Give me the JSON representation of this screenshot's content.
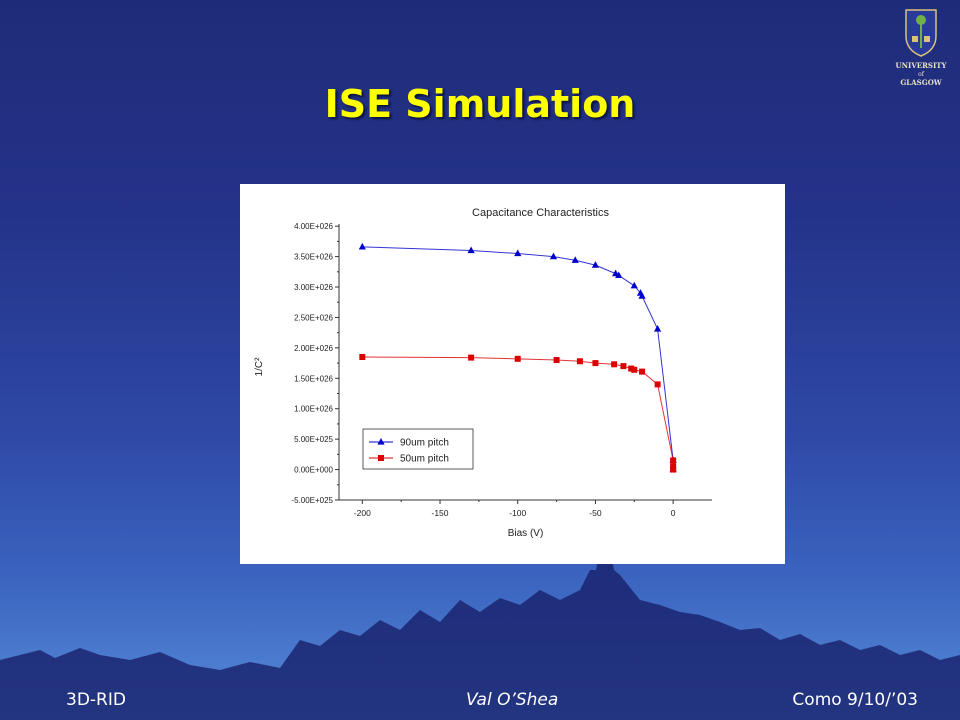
{
  "slide": {
    "title": "ISE Simulation",
    "footer_left": "3D-RID",
    "footer_center": "Val O’Shea",
    "footer_right": "Como 9/10/’03",
    "logo_text": [
      "UNIVERSITY",
      "of",
      "GLASGOW"
    ],
    "logo_icon": "university-crest-icon"
  },
  "colors": {
    "title": "#ffff00",
    "background_top": "#1e2c78",
    "background_bottom": "#4f86d8",
    "series_90um": "#0000cc",
    "series_50um": "#dd0000"
  },
  "chart_data": {
    "type": "line",
    "title": "Capacitance Characteristics",
    "xlabel": "Bias (V)",
    "ylabel": "1/C²",
    "xlim": [
      -215,
      25
    ],
    "ylim": [
      -5e+25,
      4.2e+26
    ],
    "xticks": [
      -200,
      -150,
      -100,
      -50,
      0
    ],
    "xtick_labels": [
      "-200",
      "-150",
      "-100",
      "-50",
      "0"
    ],
    "yticks": [
      -5e+25,
      0,
      5e+25,
      1e+26,
      1.5e+26,
      2e+26,
      2.5e+26,
      3e+26,
      3.5e+26,
      4e+26
    ],
    "ytick_labels": [
      "-5.00E+025",
      "0.00E+000",
      "5.00E+025",
      "1.00E+026",
      "1.50E+026",
      "2.00E+026",
      "2.50E+026",
      "3.00E+026",
      "3.50E+026",
      "4.00E+026"
    ],
    "grid": false,
    "legend_position": "bottom-left",
    "series": [
      {
        "name": "90um pitch",
        "marker": "triangle",
        "color": "#0000cc",
        "x": [
          -200,
          -130,
          -100,
          -77,
          -63,
          -50,
          -37,
          -35,
          -25,
          -21,
          -20,
          -10,
          0,
          0
        ],
        "y": [
          3.66e+26,
          3.6e+26,
          3.55e+26,
          3.5e+26,
          3.44e+26,
          3.36e+26,
          3.22e+26,
          3.19e+26,
          3.02e+26,
          2.9e+26,
          2.85e+26,
          2.31e+26,
          1.5e+25,
          1e+24
        ]
      },
      {
        "name": "50um pitch",
        "marker": "square",
        "color": "#dd0000",
        "x": [
          -200,
          -130,
          -100,
          -75,
          -60,
          -50,
          -38,
          -32,
          -27,
          -25,
          -20,
          -10,
          0,
          0,
          0
        ],
        "y": [
          1.85e+26,
          1.84e+26,
          1.82e+26,
          1.8e+26,
          1.78e+26,
          1.75e+26,
          1.73e+26,
          1.7e+26,
          1.66e+26,
          1.64e+26,
          1.61e+26,
          1.4e+26,
          1.5e+25,
          5e+24,
          0
        ]
      }
    ]
  }
}
